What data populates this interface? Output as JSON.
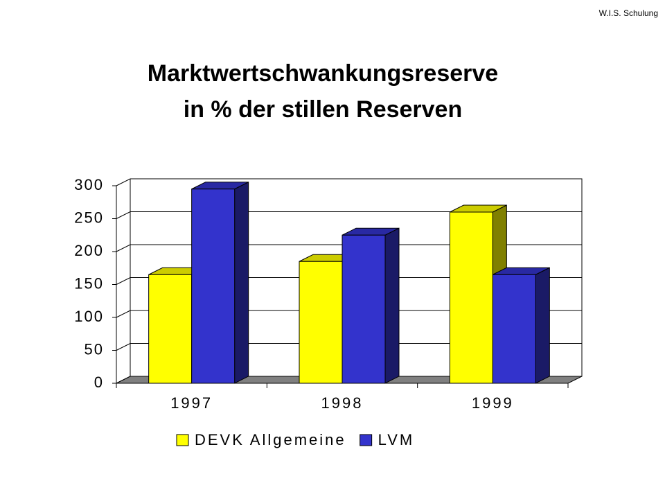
{
  "header": "W.I.S. Schulung",
  "chart_data": {
    "type": "bar",
    "title": "Marktwertschwankungsreserve",
    "subtitle": "in % der stillen Reserven",
    "categories": [
      "1997",
      "1998",
      "1999"
    ],
    "series": [
      {
        "name": "DEVK Allgemeine",
        "color": "#ffff00",
        "values": [
          165,
          185,
          260
        ]
      },
      {
        "name": "LVM",
        "color": "#3333cc",
        "values": [
          295,
          225,
          165
        ]
      }
    ],
    "ylim": [
      0,
      300
    ],
    "yticks": [
      0,
      50,
      100,
      150,
      200,
      250,
      300
    ],
    "grid": true,
    "legend": "bottom"
  }
}
